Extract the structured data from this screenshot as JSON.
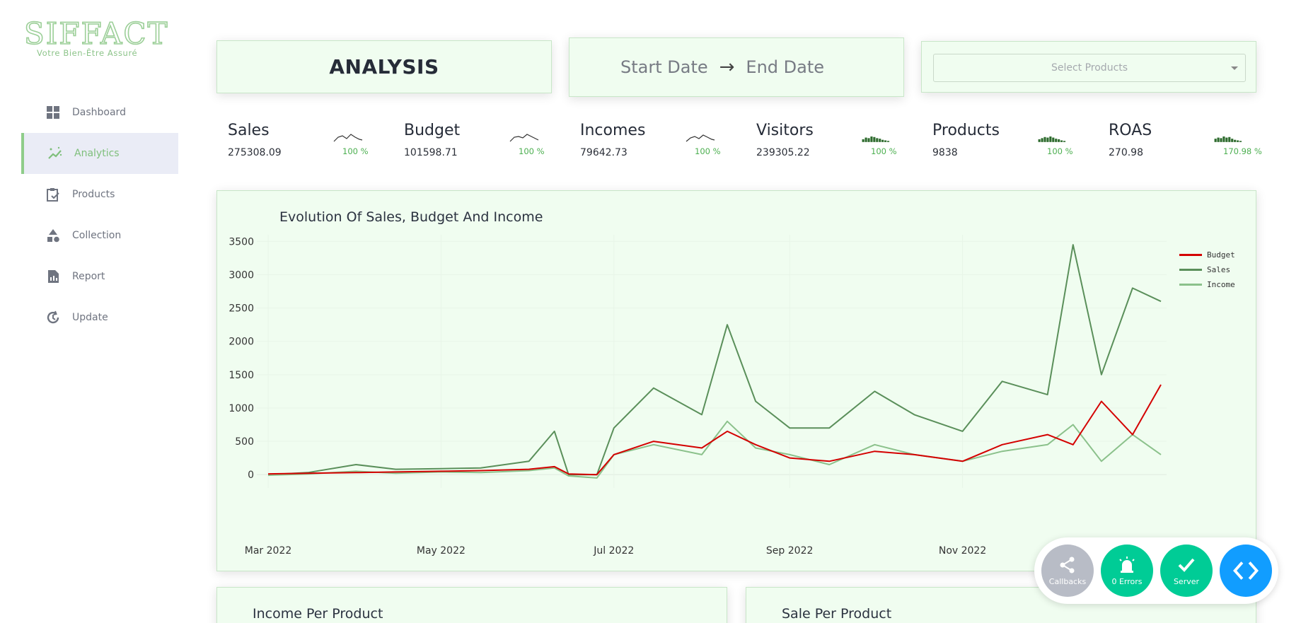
{
  "logo": {
    "text": "SIFFACT",
    "tagline": "Votre Bien-Être Assuré"
  },
  "sidebar": {
    "items": [
      {
        "label": "Dashboard",
        "icon": "dashboard-grid-icon",
        "active": false
      },
      {
        "label": "Analytics",
        "icon": "analytics-sparkle-icon",
        "active": true
      },
      {
        "label": "Products",
        "icon": "clipboard-check-icon",
        "active": false
      },
      {
        "label": "Collection",
        "icon": "shapes-icon",
        "active": false
      },
      {
        "label": "Report",
        "icon": "report-document-icon",
        "active": false
      },
      {
        "label": "Update",
        "icon": "update-history-icon",
        "active": false
      }
    ]
  },
  "header": {
    "title": "ANALYSIS",
    "start_date": "Start Date",
    "arrow": "→",
    "end_date": "End Date",
    "product_select_placeholder": "Select Products"
  },
  "kpis": [
    {
      "name": "Sales",
      "value": "275308.09",
      "pct": "100 %",
      "spark": "line"
    },
    {
      "name": "Budget",
      "value": "101598.71",
      "pct": "100 %",
      "spark": "line"
    },
    {
      "name": "Incomes",
      "value": "79642.73",
      "pct": "100 %",
      "spark": "line"
    },
    {
      "name": "Visitors",
      "value": "239305.22",
      "pct": "100 %",
      "spark": "bar"
    },
    {
      "name": "Products",
      "value": "9838",
      "pct": "100 %",
      "spark": "bar"
    },
    {
      "name": "ROAS",
      "value": "270.98",
      "pct": "170.98 %",
      "spark": "bar"
    }
  ],
  "main_chart": {
    "title": "Evolution Of Sales, Budget And Income"
  },
  "chart_data": {
    "type": "line",
    "title": "Evolution Of Sales, Budget And Income",
    "xlabel": "",
    "ylabel": "",
    "x_tick_labels": [
      "Mar 2022",
      "May 2022",
      "Jul 2022",
      "Sep 2022",
      "Nov 2022"
    ],
    "y_tick_labels": [
      "0",
      "500",
      "1000",
      "1500",
      "2000",
      "2500",
      "3000",
      "3500"
    ],
    "ylim": [
      -200,
      3600
    ],
    "x": [
      "2022-03-01",
      "2022-03-15",
      "2022-04-01",
      "2022-04-15",
      "2022-05-01",
      "2022-05-15",
      "2022-06-01",
      "2022-06-10",
      "2022-06-15",
      "2022-06-25",
      "2022-07-01",
      "2022-07-15",
      "2022-08-01",
      "2022-08-10",
      "2022-08-20",
      "2022-09-01",
      "2022-09-15",
      "2022-10-01",
      "2022-10-15",
      "2022-11-01",
      "2022-11-15",
      "2022-12-01",
      "2022-12-10",
      "2022-12-20",
      "2022-12-31",
      "2023-01-10"
    ],
    "series": [
      {
        "name": "Budget",
        "color": "#d40000",
        "values": [
          10,
          20,
          30,
          40,
          50,
          60,
          80,
          120,
          10,
          0,
          300,
          500,
          400,
          650,
          450,
          250,
          200,
          350,
          300,
          200,
          450,
          600,
          450,
          1100,
          600,
          1350
        ]
      },
      {
        "name": "Sales",
        "color": "#5a8f5a",
        "values": [
          0,
          30,
          150,
          80,
          90,
          100,
          200,
          650,
          0,
          0,
          700,
          1300,
          900,
          2250,
          1100,
          700,
          700,
          1250,
          900,
          650,
          1400,
          1200,
          3450,
          1500,
          2800,
          2600
        ]
      },
      {
        "name": "Income",
        "color": "#8bc18b",
        "values": [
          -10,
          10,
          50,
          20,
          40,
          30,
          60,
          100,
          -20,
          -50,
          300,
          450,
          300,
          800,
          400,
          300,
          150,
          450,
          300,
          200,
          350,
          450,
          750,
          200,
          600,
          300
        ]
      }
    ],
    "grid": true,
    "legend": "top-right"
  },
  "bottom_cards": [
    {
      "title": "Income Per Product"
    },
    {
      "title": "Sale Per Product"
    }
  ],
  "debug": {
    "callbacks_label": "Callbacks",
    "errors_label": "0 Errors",
    "server_label": "Server"
  }
}
